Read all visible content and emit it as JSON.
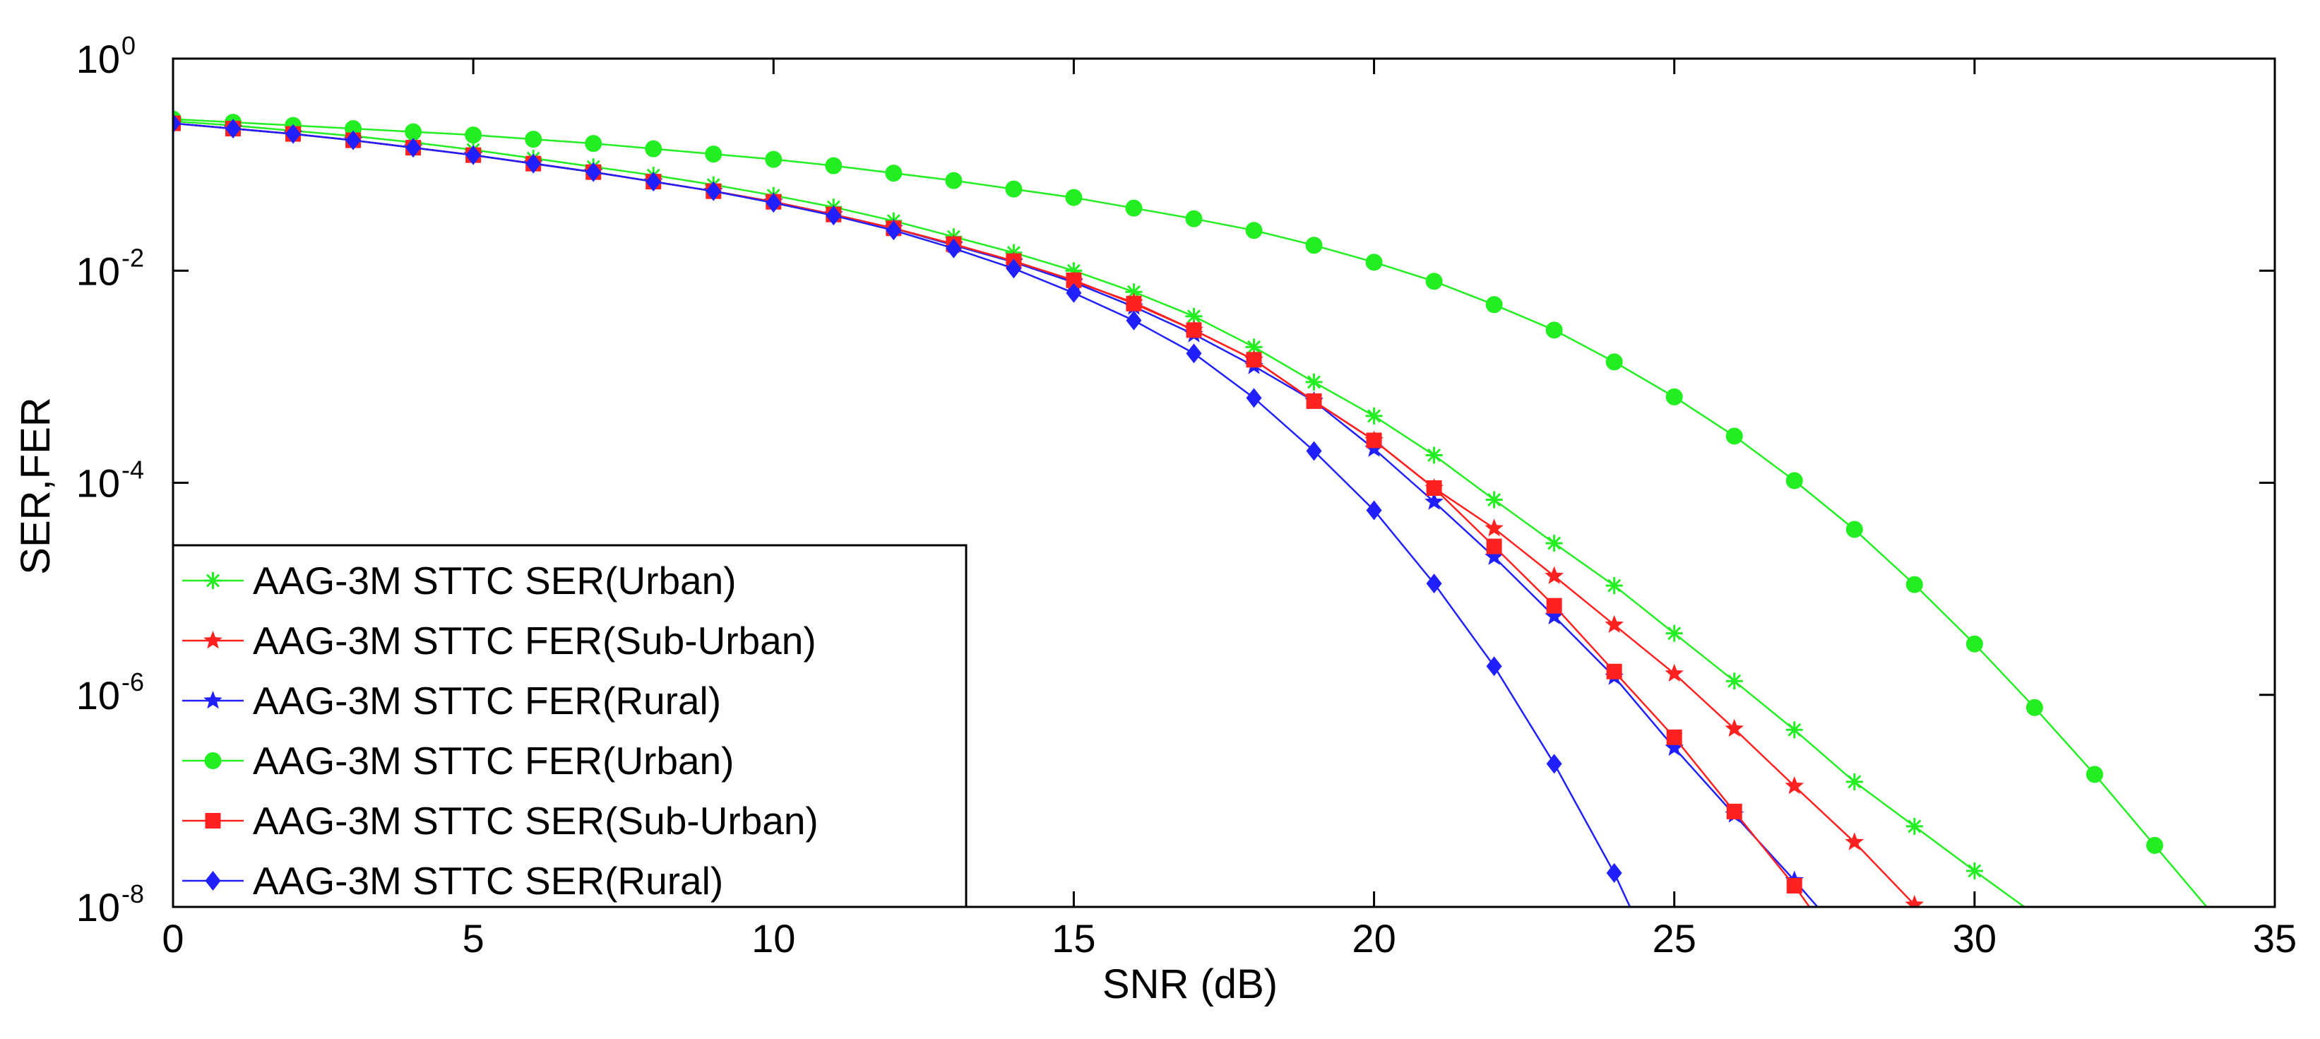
{
  "chart_data": {
    "type": "line",
    "title": "",
    "xlabel": "SNR (dB)",
    "ylabel": "SER,FER",
    "xlim": [
      0,
      35
    ],
    "ylim_log10": [
      -8,
      0
    ],
    "yscale": "log",
    "grid": false,
    "legend_position": "bottom-left",
    "x_ticks": [
      {
        "value": 0,
        "label": "0"
      },
      {
        "value": 5,
        "label": "5"
      },
      {
        "value": 10,
        "label": "10"
      },
      {
        "value": 15,
        "label": "15"
      },
      {
        "value": 20,
        "label": "20"
      },
      {
        "value": 25,
        "label": "25"
      },
      {
        "value": 30,
        "label": "30"
      },
      {
        "value": 35,
        "label": "35"
      }
    ],
    "y_ticks": [
      {
        "exp": 0,
        "base": "10",
        "power": "0"
      },
      {
        "exp": -2,
        "base": "10",
        "power": "-2"
      },
      {
        "exp": -4,
        "base": "10",
        "power": "-4"
      },
      {
        "exp": -6,
        "base": "10",
        "power": "-6"
      },
      {
        "exp": -8,
        "base": "10",
        "power": "-8"
      }
    ],
    "series": [
      {
        "name": "AAG-3M STTC SER(Urban)",
        "color": "#22ee22",
        "marker": "asterisk",
        "x": [
          0,
          1,
          2,
          3,
          4,
          5,
          6,
          7,
          8,
          9,
          10,
          11,
          12,
          13,
          14,
          15,
          16,
          17,
          18,
          19,
          20,
          21,
          22,
          23,
          24,
          25,
          26,
          27,
          28,
          29,
          30,
          31
        ],
        "log10y": [
          -0.59,
          -0.63,
          -0.68,
          -0.73,
          -0.79,
          -0.86,
          -0.94,
          -1.02,
          -1.1,
          -1.19,
          -1.29,
          -1.4,
          -1.53,
          -1.68,
          -1.83,
          -2.0,
          -2.2,
          -2.43,
          -2.72,
          -3.05,
          -3.37,
          -3.74,
          -4.16,
          -4.57,
          -4.97,
          -5.42,
          -5.87,
          -6.33,
          -6.82,
          -7.24,
          -7.66,
          -8.07
        ]
      },
      {
        "name": "AAG-3M STTC FER(Sub-Urban)",
        "color": "#ff2020",
        "marker": "star",
        "x": [
          0,
          1,
          2,
          3,
          4,
          5,
          6,
          7,
          8,
          9,
          10,
          11,
          12,
          13,
          14,
          15,
          16,
          17,
          18,
          19,
          20,
          21,
          22,
          23,
          24,
          25,
          26,
          27,
          28,
          29
        ],
        "log10y": [
          -0.61,
          -0.66,
          -0.71,
          -0.77,
          -0.84,
          -0.91,
          -0.99,
          -1.07,
          -1.16,
          -1.25,
          -1.35,
          -1.47,
          -1.6,
          -1.75,
          -1.91,
          -2.1,
          -2.3,
          -2.56,
          -2.84,
          -3.23,
          -3.6,
          -4.05,
          -4.43,
          -4.88,
          -5.34,
          -5.8,
          -6.32,
          -6.86,
          -7.39,
          -7.98
        ]
      },
      {
        "name": "AAG-3M STTC FER(Rural)",
        "color": "#2020ff",
        "marker": "star",
        "x": [
          0,
          1,
          2,
          3,
          4,
          5,
          6,
          7,
          8,
          9,
          10,
          11,
          12,
          13,
          14,
          15,
          16,
          17,
          18,
          19,
          20,
          21,
          22,
          23,
          24,
          25,
          26,
          27,
          28
        ],
        "log10y": [
          -0.61,
          -0.66,
          -0.71,
          -0.77,
          -0.84,
          -0.91,
          -0.99,
          -1.07,
          -1.16,
          -1.25,
          -1.35,
          -1.47,
          -1.6,
          -1.76,
          -1.92,
          -2.11,
          -2.34,
          -2.6,
          -2.9,
          -3.23,
          -3.68,
          -4.18,
          -4.7,
          -5.26,
          -5.83,
          -6.5,
          -7.13,
          -7.75,
          -8.4
        ]
      },
      {
        "name": "AAG-3M STTC FER(Urban)",
        "color": "#22ee22",
        "marker": "circle",
        "x": [
          0,
          1,
          2,
          3,
          4,
          5,
          6,
          7,
          8,
          9,
          10,
          11,
          12,
          13,
          14,
          15,
          16,
          17,
          18,
          19,
          20,
          21,
          22,
          23,
          24,
          25,
          26,
          27,
          28,
          29,
          30,
          31,
          32,
          33,
          34,
          35
        ],
        "log10y": [
          -0.57,
          -0.6,
          -0.63,
          -0.66,
          -0.69,
          -0.72,
          -0.76,
          -0.8,
          -0.85,
          -0.9,
          -0.95,
          -1.01,
          -1.08,
          -1.15,
          -1.23,
          -1.31,
          -1.41,
          -1.51,
          -1.62,
          -1.76,
          -1.92,
          -2.1,
          -2.32,
          -2.56,
          -2.86,
          -3.19,
          -3.56,
          -3.98,
          -4.44,
          -4.96,
          -5.52,
          -6.12,
          -6.75,
          -7.42,
          -8.09,
          -8.8
        ]
      },
      {
        "name": "AAG-3M STTC SER(Sub-Urban)",
        "color": "#ff2020",
        "marker": "square",
        "x": [
          0,
          1,
          2,
          3,
          4,
          5,
          6,
          7,
          8,
          9,
          10,
          11,
          12,
          13,
          14,
          15,
          16,
          17,
          18,
          19,
          20,
          21,
          22,
          23,
          24,
          25,
          26,
          27,
          28
        ],
        "log10y": [
          -0.61,
          -0.66,
          -0.71,
          -0.77,
          -0.84,
          -0.91,
          -0.99,
          -1.07,
          -1.16,
          -1.25,
          -1.35,
          -1.47,
          -1.6,
          -1.75,
          -1.91,
          -2.09,
          -2.31,
          -2.56,
          -2.84,
          -3.23,
          -3.6,
          -4.05,
          -4.6,
          -5.16,
          -5.78,
          -6.4,
          -7.1,
          -7.8,
          -8.6
        ]
      },
      {
        "name": "AAG-3M STTC SER(Rural)",
        "color": "#2020ff",
        "marker": "diamond",
        "x": [
          0,
          1,
          2,
          3,
          4,
          5,
          6,
          7,
          8,
          9,
          10,
          11,
          12,
          13,
          14,
          15,
          16,
          17,
          18,
          19,
          20,
          21,
          22,
          23,
          24,
          25
        ],
        "log10y": [
          -0.61,
          -0.66,
          -0.71,
          -0.77,
          -0.84,
          -0.91,
          -0.99,
          -1.07,
          -1.16,
          -1.25,
          -1.36,
          -1.48,
          -1.62,
          -1.79,
          -1.98,
          -2.21,
          -2.47,
          -2.78,
          -3.2,
          -3.7,
          -4.26,
          -4.95,
          -5.73,
          -6.65,
          -7.68,
          -8.9
        ]
      }
    ]
  }
}
